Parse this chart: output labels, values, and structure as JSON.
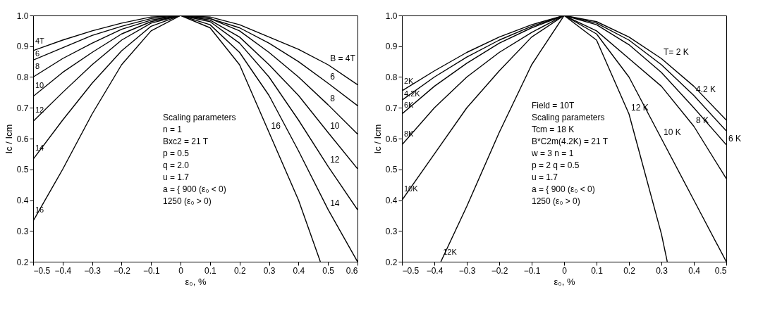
{
  "chart_data": [
    {
      "type": "line",
      "xlabel": "ε₀, %",
      "ylabel": "Ic / Icm",
      "x": [
        -0.5,
        -0.4,
        -0.3,
        -0.2,
        -0.1,
        0,
        0.1,
        0.2,
        0.3,
        0.4,
        0.5,
        0.6
      ],
      "xlim": [
        -0.5,
        0.6
      ],
      "xticks": [
        -0.5,
        -0.4,
        -0.3,
        -0.2,
        -0.1,
        0,
        0.1,
        0.2,
        0.3,
        0.4,
        0.5,
        0.6
      ],
      "ylim": [
        0.2,
        1.0
      ],
      "yticks": [
        0.2,
        0.3,
        0.4,
        0.5,
        0.6,
        0.7,
        0.8,
        0.9,
        {
          "value": 1.0,
          "label": "1.0"
        }
      ],
      "grid": false,
      "legend": false,
      "marker": "none",
      "line_style": "solid",
      "series": [
        {
          "name": "4T",
          "color": "#000000",
          "values": [
            0.886,
            0.92,
            0.95,
            0.975,
            0.995,
            1.0,
            0.995,
            0.97,
            0.93,
            0.89,
            0.84,
            0.775
          ]
        },
        {
          "name": "6",
          "color": "#000000",
          "values": [
            0.855,
            0.895,
            0.935,
            0.965,
            0.99,
            1.0,
            0.99,
            0.96,
            0.91,
            0.85,
            0.78,
            0.707
          ]
        },
        {
          "name": "8",
          "color": "#000000",
          "values": [
            0.8,
            0.86,
            0.91,
            0.955,
            0.985,
            1.0,
            0.99,
            0.95,
            0.88,
            0.8,
            0.71,
            0.615
          ]
        },
        {
          "name": "10",
          "color": "#000000",
          "values": [
            0.737,
            0.815,
            0.88,
            0.94,
            0.98,
            1.0,
            0.985,
            0.93,
            0.84,
            0.74,
            0.62,
            0.502
          ]
        },
        {
          "name": "12",
          "color": "#000000",
          "values": [
            0.656,
            0.75,
            0.84,
            0.92,
            0.975,
            1.0,
            0.98,
            0.91,
            0.8,
            0.66,
            0.51,
            0.369
          ]
        },
        {
          "name": "14",
          "color": "#000000",
          "values": [
            0.533,
            0.66,
            0.78,
            0.885,
            0.965,
            1.0,
            0.97,
            0.88,
            0.74,
            0.56,
            0.37,
            0.2
          ]
        },
        {
          "name": "16",
          "color": "#000000",
          "x": [
            -0.5,
            -0.4,
            -0.3,
            -0.2,
            -0.1,
            0,
            0.1,
            0.2,
            0.3,
            0.4,
            0.474
          ],
          "values": [
            0.332,
            0.5,
            0.68,
            0.84,
            0.95,
            1.0,
            0.96,
            0.84,
            0.62,
            0.4,
            0.2
          ]
        }
      ],
      "annotations": [
        {
          "text": "B = 4T",
          "x": 0.5,
          "y": 0.84
        },
        {
          "text": "6",
          "x": 0.5,
          "y": 0.78
        },
        {
          "text": "8",
          "x": 0.5,
          "y": 0.71
        },
        {
          "text": "10",
          "x": 0.5,
          "y": 0.62
        },
        {
          "text": "12",
          "x": 0.5,
          "y": 0.51
        },
        {
          "text": "14",
          "x": 0.5,
          "y": 0.37
        },
        {
          "text": "16",
          "x": 0.3,
          "y": 0.62
        },
        "Scaling parameters",
        "n = 1",
        "Bxc2 = 21 T",
        "p = 0.5",
        "q = 2.0",
        "u = 1.7",
        "a = { 900 (ε₀ < 0)",
        "        1250 (ε₀ > 0)"
      ]
    },
    {
      "type": "line",
      "xlabel": "ε₀, %",
      "ylabel": "Ic / Icm",
      "x": [
        -0.5,
        -0.4,
        -0.3,
        -0.2,
        -0.1,
        0,
        0.1,
        0.2,
        0.3,
        0.4,
        0.5
      ],
      "xlim": [
        -0.5,
        0.5
      ],
      "xticks": [
        -0.5,
        -0.4,
        -0.3,
        -0.2,
        -0.1,
        0,
        0.1,
        0.2,
        0.3,
        0.4,
        0.5
      ],
      "ylim": [
        0.2,
        1.0
      ],
      "yticks": [
        0.2,
        0.3,
        0.4,
        0.5,
        0.6,
        0.7,
        0.8,
        0.9,
        {
          "value": 1.0,
          "label": "1.0"
        }
      ],
      "grid": false,
      "legend": false,
      "marker": "none",
      "line_style": "solid",
      "series": [
        {
          "name": "2K",
          "color": "#000000",
          "values": [
            0.755,
            0.82,
            0.88,
            0.93,
            0.97,
            1.0,
            0.98,
            0.93,
            0.86,
            0.77,
            0.66
          ]
        },
        {
          "name": "4.2K",
          "color": "#000000",
          "values": [
            0.725,
            0.8,
            0.865,
            0.92,
            0.965,
            1.0,
            0.975,
            0.92,
            0.84,
            0.74,
            0.625
          ]
        },
        {
          "name": "6K",
          "color": "#000000",
          "values": [
            0.68,
            0.77,
            0.845,
            0.91,
            0.96,
            1.0,
            0.97,
            0.905,
            0.815,
            0.7,
            0.58
          ]
        },
        {
          "name": "8K",
          "color": "#000000",
          "values": [
            0.58,
            0.7,
            0.8,
            0.88,
            0.945,
            1.0,
            0.95,
            0.86,
            0.77,
            0.64,
            0.47
          ]
        },
        {
          "name": "10K",
          "color": "#000000",
          "values": [
            0.4,
            0.55,
            0.7,
            0.82,
            0.93,
            1.0,
            0.94,
            0.8,
            0.6,
            0.4,
            0.2
          ]
        },
        {
          "name": "12K",
          "color": "#000000",
          "x": [
            -0.38,
            -0.3,
            -0.2,
            -0.1,
            0,
            0.1,
            0.2,
            0.3,
            0.318
          ],
          "values": [
            0.2,
            0.38,
            0.62,
            0.84,
            1.0,
            0.92,
            0.68,
            0.29,
            0.2
          ]
        }
      ],
      "annotations": [
        {
          "text": "T= 2 K",
          "x": 0.3,
          "y": 0.86
        },
        {
          "text": "4.2 K",
          "x": 0.4,
          "y": 0.74
        },
        {
          "text": "6 K",
          "x": 0.5,
          "y": 0.58
        },
        {
          "text": "8 K",
          "x": 0.4,
          "y": 0.64
        },
        {
          "text": "10 K",
          "x": 0.3,
          "y": 0.6
        },
        {
          "text": "12 K",
          "x": 0.2,
          "y": 0.68
        },
        "Field = 10T",
        "Scaling parameters",
        "Tcm = 18 K",
        "B*C2m(4.2K) = 21 T",
        "w = 3      n = 1",
        "p = 2       q = 0.5",
        "u = 1.7",
        "a = { 900 (ε₀ < 0)",
        "        1250 (ε₀ > 0)"
      ]
    }
  ]
}
